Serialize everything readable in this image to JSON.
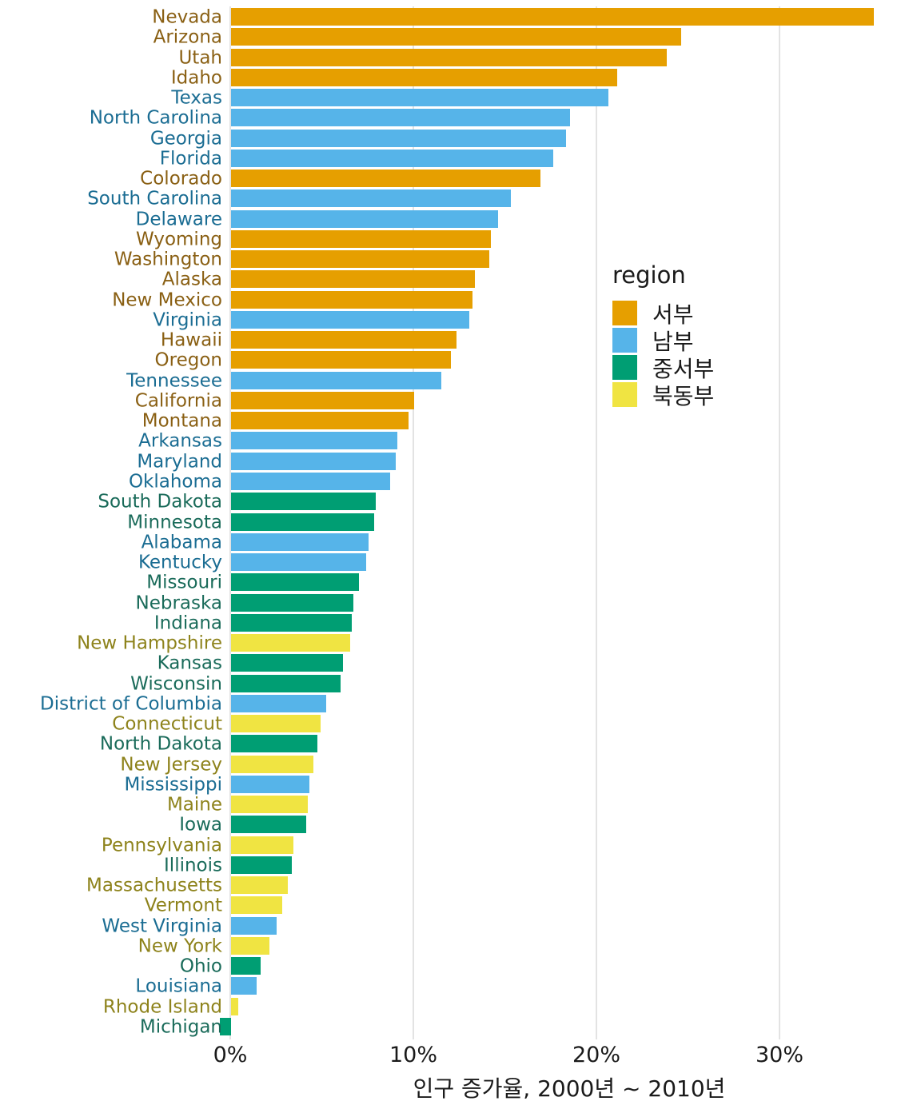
{
  "chart_data": {
    "type": "bar",
    "orientation": "horizontal",
    "title": "",
    "xlabel": "인구 증가율, 2000년 ~ 2010년",
    "ylabel": "",
    "x_tick_values": [
      0,
      10,
      20,
      30
    ],
    "x_tick_labels": [
      "0%",
      "10%",
      "20%",
      "30%"
    ],
    "xlim": [
      -1.5,
      37
    ],
    "grid": "vertical major gridlines only, light gray, no axis lines",
    "legend_title": "region",
    "legend_position": "inside-right",
    "regions": {
      "west": {
        "label": "서부",
        "bar_color": "#E69F00",
        "label_color": "#8a6014"
      },
      "south": {
        "label": "남부",
        "bar_color": "#56B4E9",
        "label_color": "#1b6d93"
      },
      "midwest": {
        "label": "중서부",
        "bar_color": "#009E73",
        "label_color": "#1a6b5a"
      },
      "northeast": {
        "label": "북동부",
        "bar_color": "#F0E442",
        "label_color": "#8e831c"
      }
    },
    "legend_order": [
      "west",
      "south",
      "midwest",
      "northeast"
    ],
    "states": [
      {
        "name": "Nevada",
        "region": "west",
        "value": 35.1
      },
      {
        "name": "Arizona",
        "region": "west",
        "value": 24.6
      },
      {
        "name": "Utah",
        "region": "west",
        "value": 23.8
      },
      {
        "name": "Idaho",
        "region": "west",
        "value": 21.1
      },
      {
        "name": "Texas",
        "region": "south",
        "value": 20.6
      },
      {
        "name": "North Carolina",
        "region": "south",
        "value": 18.5
      },
      {
        "name": "Georgia",
        "region": "south",
        "value": 18.3
      },
      {
        "name": "Florida",
        "region": "south",
        "value": 17.6
      },
      {
        "name": "Colorado",
        "region": "west",
        "value": 16.9
      },
      {
        "name": "South Carolina",
        "region": "south",
        "value": 15.3
      },
      {
        "name": "Delaware",
        "region": "south",
        "value": 14.6
      },
      {
        "name": "Wyoming",
        "region": "west",
        "value": 14.2
      },
      {
        "name": "Washington",
        "region": "west",
        "value": 14.1
      },
      {
        "name": "Alaska",
        "region": "west",
        "value": 13.3
      },
      {
        "name": "New Mexico",
        "region": "west",
        "value": 13.2
      },
      {
        "name": "Virginia",
        "region": "south",
        "value": 13.0
      },
      {
        "name": "Hawaii",
        "region": "west",
        "value": 12.3
      },
      {
        "name": "Oregon",
        "region": "west",
        "value": 12.0
      },
      {
        "name": "Tennessee",
        "region": "south",
        "value": 11.5
      },
      {
        "name": "California",
        "region": "west",
        "value": 10.0
      },
      {
        "name": "Montana",
        "region": "west",
        "value": 9.7
      },
      {
        "name": "Arkansas",
        "region": "south",
        "value": 9.1
      },
      {
        "name": "Maryland",
        "region": "south",
        "value": 9.0
      },
      {
        "name": "Oklahoma",
        "region": "south",
        "value": 8.7
      },
      {
        "name": "South Dakota",
        "region": "midwest",
        "value": 7.9
      },
      {
        "name": "Minnesota",
        "region": "midwest",
        "value": 7.8
      },
      {
        "name": "Alabama",
        "region": "south",
        "value": 7.5
      },
      {
        "name": "Kentucky",
        "region": "south",
        "value": 7.4
      },
      {
        "name": "Missouri",
        "region": "midwest",
        "value": 7.0
      },
      {
        "name": "Nebraska",
        "region": "midwest",
        "value": 6.7
      },
      {
        "name": "Indiana",
        "region": "midwest",
        "value": 6.6
      },
      {
        "name": "New Hampshire",
        "region": "northeast",
        "value": 6.5
      },
      {
        "name": "Kansas",
        "region": "midwest",
        "value": 6.1
      },
      {
        "name": "Wisconsin",
        "region": "midwest",
        "value": 6.0
      },
      {
        "name": "District of Columbia",
        "region": "south",
        "value": 5.2
      },
      {
        "name": "Connecticut",
        "region": "northeast",
        "value": 4.9
      },
      {
        "name": "North Dakota",
        "region": "midwest",
        "value": 4.7
      },
      {
        "name": "New Jersey",
        "region": "northeast",
        "value": 4.5
      },
      {
        "name": "Mississippi",
        "region": "south",
        "value": 4.3
      },
      {
        "name": "Maine",
        "region": "northeast",
        "value": 4.2
      },
      {
        "name": "Iowa",
        "region": "midwest",
        "value": 4.1
      },
      {
        "name": "Pennsylvania",
        "region": "northeast",
        "value": 3.4
      },
      {
        "name": "Illinois",
        "region": "midwest",
        "value": 3.3
      },
      {
        "name": "Massachusetts",
        "region": "northeast",
        "value": 3.1
      },
      {
        "name": "Vermont",
        "region": "northeast",
        "value": 2.8
      },
      {
        "name": "West Virginia",
        "region": "south",
        "value": 2.5
      },
      {
        "name": "New York",
        "region": "northeast",
        "value": 2.1
      },
      {
        "name": "Ohio",
        "region": "midwest",
        "value": 1.6
      },
      {
        "name": "Louisiana",
        "region": "south",
        "value": 1.4
      },
      {
        "name": "Rhode Island",
        "region": "northeast",
        "value": 0.4
      },
      {
        "name": "Michigan",
        "region": "midwest",
        "value": -0.6
      }
    ]
  }
}
